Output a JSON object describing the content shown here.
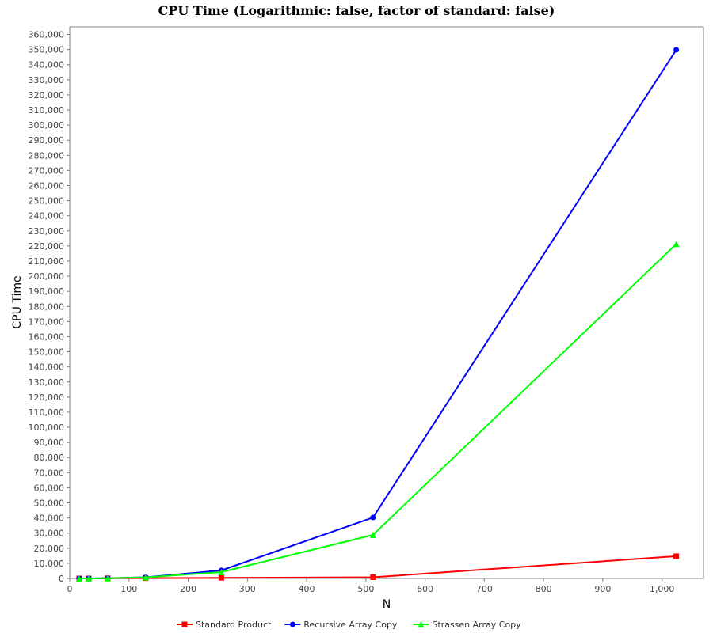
{
  "chart_data": {
    "type": "line",
    "title": "CPU Time (Logarithmic: false, factor of standard: false)",
    "xlabel": "N",
    "ylabel": "CPU Time",
    "xlim": [
      0,
      1070
    ],
    "ylim": [
      0,
      365000
    ],
    "x_ticks": [
      0,
      100,
      200,
      300,
      400,
      500,
      600,
      700,
      800,
      900,
      1000
    ],
    "x_tick_labels": [
      "0",
      "100",
      "200",
      "300",
      "400",
      "500",
      "600",
      "700",
      "800",
      "900",
      "1,000"
    ],
    "y_tick_step": 10000,
    "y_tick_max": 360000,
    "grid": false,
    "legend_position": "bottom",
    "series": [
      {
        "name": "Standard Product",
        "color": "#ff0000",
        "marker": "square",
        "x": [
          16,
          32,
          64,
          128,
          256,
          512,
          1024
        ],
        "y": [
          0,
          0,
          100,
          200,
          400,
          800,
          14700
        ]
      },
      {
        "name": "Recursive Array Copy",
        "color": "#0000ff",
        "marker": "circle",
        "x": [
          16,
          32,
          64,
          128,
          256,
          512,
          1024
        ],
        "y": [
          0,
          0,
          100,
          800,
          5300,
          40300,
          349800
        ]
      },
      {
        "name": "Strassen Array Copy",
        "color": "#00ff00",
        "marker": "triangle",
        "x": [
          16,
          32,
          64,
          128,
          256,
          512,
          1024
        ],
        "y": [
          0,
          0,
          100,
          700,
          4200,
          28800,
          221300
        ]
      }
    ]
  }
}
